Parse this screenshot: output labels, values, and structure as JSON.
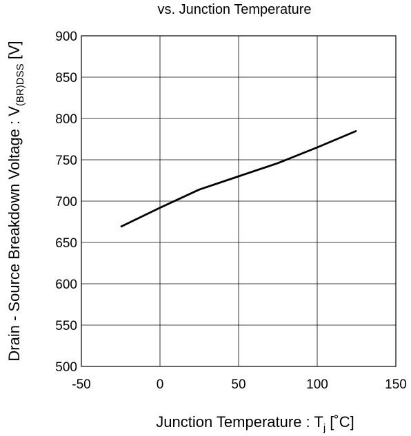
{
  "chart_data": {
    "type": "line",
    "title": "vs. Junction Temperature",
    "xlabel": {
      "main": "Junction Temperature : T",
      "sub": "j",
      "unit": " [˚C]"
    },
    "ylabel": {
      "main": "Drain - Source Breakdown Voltage : V",
      "sub": "(BR)DSS",
      "unit": " [V]"
    },
    "xlim": [
      -50,
      150
    ],
    "ylim": [
      500,
      900
    ],
    "xticks": [
      -50,
      0,
      50,
      100,
      150
    ],
    "yticks": [
      500,
      550,
      600,
      650,
      700,
      750,
      800,
      850,
      900
    ],
    "grid": true,
    "series": [
      {
        "color": "#000000",
        "x": [
          -25,
          0,
          25,
          50,
          75,
          100,
          125
        ],
        "y": [
          669,
          692,
          714,
          730,
          746,
          765,
          785
        ]
      }
    ]
  }
}
